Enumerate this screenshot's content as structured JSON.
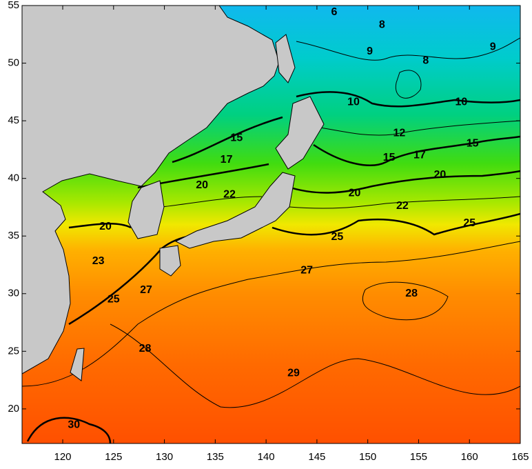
{
  "map": {
    "xlim": [
      116,
      165
    ],
    "ylim": [
      17,
      55
    ],
    "xticks": [
      120,
      125,
      130,
      135,
      140,
      145,
      150,
      155,
      160,
      165
    ],
    "yticks": [
      20,
      25,
      30,
      35,
      40,
      45,
      50,
      55
    ],
    "contour_labels": [
      {
        "value": 6,
        "lon": 146.7,
        "lat": 54.4
      },
      {
        "value": 8,
        "lon": 151.4,
        "lat": 53.3
      },
      {
        "value": 9,
        "lon": 150.2,
        "lat": 51.0
      },
      {
        "value": 8,
        "lon": 155.7,
        "lat": 50.2
      },
      {
        "value": 9,
        "lon": 162.3,
        "lat": 51.4
      },
      {
        "value": 10,
        "lon": 148.6,
        "lat": 46.6
      },
      {
        "value": 10,
        "lon": 159.2,
        "lat": 46.6
      },
      {
        "value": 12,
        "lon": 153.1,
        "lat": 43.9
      },
      {
        "value": 15,
        "lon": 137.1,
        "lat": 43.5
      },
      {
        "value": 15,
        "lon": 152.1,
        "lat": 41.8
      },
      {
        "value": 15,
        "lon": 160.3,
        "lat": 43.0
      },
      {
        "value": 17,
        "lon": 136.1,
        "lat": 41.6
      },
      {
        "value": 17,
        "lon": 155.1,
        "lat": 42.0
      },
      {
        "value": 20,
        "lon": 133.7,
        "lat": 39.4
      },
      {
        "value": 20,
        "lon": 157.1,
        "lat": 40.3
      },
      {
        "value": 20,
        "lon": 148.7,
        "lat": 38.7
      },
      {
        "value": 20,
        "lon": 124.2,
        "lat": 35.8
      },
      {
        "value": 22,
        "lon": 136.4,
        "lat": 38.6
      },
      {
        "value": 22,
        "lon": 153.4,
        "lat": 37.6
      },
      {
        "value": 25,
        "lon": 160.0,
        "lat": 36.1
      },
      {
        "value": 25,
        "lon": 147.0,
        "lat": 34.9
      },
      {
        "value": 23,
        "lon": 123.5,
        "lat": 32.8
      },
      {
        "value": 25,
        "lon": 125.0,
        "lat": 29.5
      },
      {
        "value": 27,
        "lon": 128.2,
        "lat": 30.3
      },
      {
        "value": 27,
        "lon": 144.0,
        "lat": 32.0
      },
      {
        "value": 28,
        "lon": 154.3,
        "lat": 30.0
      },
      {
        "value": 28,
        "lon": 128.1,
        "lat": 25.2
      },
      {
        "value": 29,
        "lon": 142.7,
        "lat": 23.1
      },
      {
        "value": 30,
        "lon": 121.1,
        "lat": 18.6
      }
    ]
  }
}
